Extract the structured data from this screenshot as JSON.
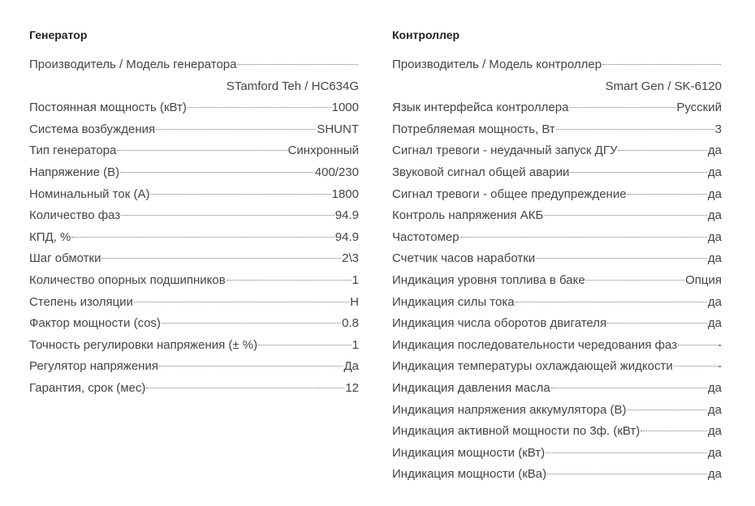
{
  "generator": {
    "title": "Генератор",
    "model_label": "Производитель / Модель генератора",
    "model_value": "STamford Teh / HC634G",
    "rows": [
      {
        "label": "Постоянная мощность (кВт)",
        "value": "1000"
      },
      {
        "label": "Система возбуждения",
        "value": "SHUNT"
      },
      {
        "label": "Тип генератора",
        "value": "Синхронный"
      },
      {
        "label": "Напряжение (В)",
        "value": "400/230"
      },
      {
        "label": "Номинальный ток (А)",
        "value": "1800"
      },
      {
        "label": "Количество фаз",
        "value": "94.9"
      },
      {
        "label": "КПД, %",
        "value": "94.9"
      },
      {
        "label": "Шаг обмотки",
        "value": "2\\3"
      },
      {
        "label": "Количество опорных подшипников",
        "value": "1"
      },
      {
        "label": "Степень изоляции",
        "value": "H"
      },
      {
        "label": "Фактор мощности (cos)",
        "value": "0.8"
      },
      {
        "label": "Точность регулировки напряжения (± %)",
        "value": "1"
      },
      {
        "label": "Регулятор напряжения",
        "value": "Да"
      },
      {
        "label": "Гарантия, срок (мес)",
        "value": "12"
      }
    ]
  },
  "controller": {
    "title": "Контроллер",
    "model_label": "Производитель / Модель контроллер",
    "model_value": "Smart Gen / SK-6120",
    "rows": [
      {
        "label": "Язык интерфейса контроллера",
        "value": "Русский"
      },
      {
        "label": "Потребляемая мощность, Вт",
        "value": "3"
      },
      {
        "label": "Сигнал тревоги - неудачный запуск ДГУ",
        "value": "да"
      },
      {
        "label": "Звуковой сигнал общей аварии",
        "value": "да"
      },
      {
        "label": "Сигнал тревоги - общее предупреждение",
        "value": "да"
      },
      {
        "label": "Контроль напряжения АКБ",
        "value": "да"
      },
      {
        "label": "Частотомер",
        "value": "да"
      },
      {
        "label": "Счетчик часов наработки",
        "value": "да"
      },
      {
        "label": "Индикация уровня топлива в баке",
        "value": "Опция"
      },
      {
        "label": "Индикация силы тока",
        "value": "да"
      },
      {
        "label": "Индикация числа оборотов двигателя",
        "value": "да"
      },
      {
        "label": "Индикация последовательности чередования фаз",
        "value": "-"
      },
      {
        "label": "Индикация температуры охлаждающей жидкости",
        "value": "-"
      },
      {
        "label": "Индикация давления масла",
        "value": "да"
      },
      {
        "label": "Индикация напряжения аккумулятора (В)",
        "value": "да"
      },
      {
        "label": "Индикация активной мощности по 3ф. (кВт)",
        "value": "да"
      },
      {
        "label": "Индикация мощности (кВт)",
        "value": "да"
      },
      {
        "label": "Индикация мощности (кВа)",
        "value": "да"
      }
    ]
  }
}
